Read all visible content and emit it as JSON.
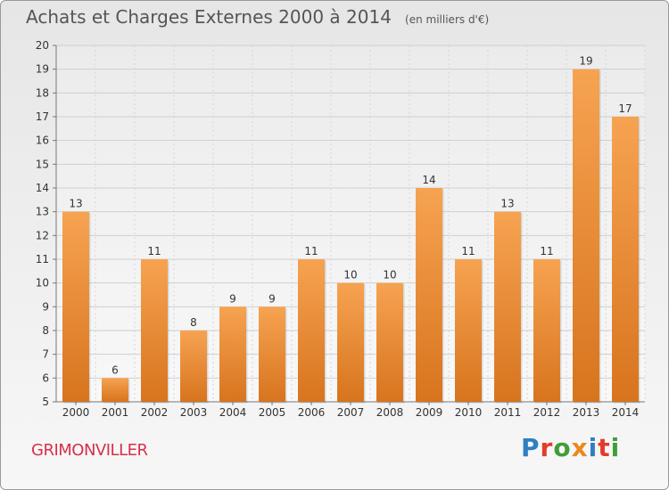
{
  "page": {
    "title": "Achats et Charges Externes 2000 à 2014",
    "subtitle": "(en milliers d'€)",
    "city": "GRIMONVILLER",
    "brand": "Proxiti",
    "brand_colors": [
      "#2f7fc1",
      "#e23c2a",
      "#3f9e3a",
      "#e98a1b",
      "#2f7fc1",
      "#e23c2a",
      "#3f9e3a"
    ]
  },
  "chart_data": {
    "type": "bar",
    "categories": [
      "2000",
      "2001",
      "2002",
      "2003",
      "2004",
      "2005",
      "2006",
      "2007",
      "2008",
      "2009",
      "2010",
      "2011",
      "2012",
      "2013",
      "2014"
    ],
    "values": [
      13,
      6,
      11,
      8,
      9,
      9,
      11,
      10,
      10,
      14,
      11,
      13,
      11,
      19,
      17
    ],
    "data_labels": [
      "13",
      "6",
      "11",
      "8",
      "9",
      "9",
      "11",
      "10",
      "10",
      "14",
      "11",
      "13",
      "11",
      "19",
      "17"
    ],
    "y_ticks": [
      "5",
      "6",
      "7",
      "8",
      "9",
      "10",
      "11",
      "12",
      "13",
      "14",
      "15",
      "16",
      "17",
      "18",
      "19",
      "20"
    ],
    "ylim": [
      5,
      20
    ],
    "grid": true,
    "bar_color_top": "#f6a351",
    "bar_color_bottom": "#d8741e"
  }
}
